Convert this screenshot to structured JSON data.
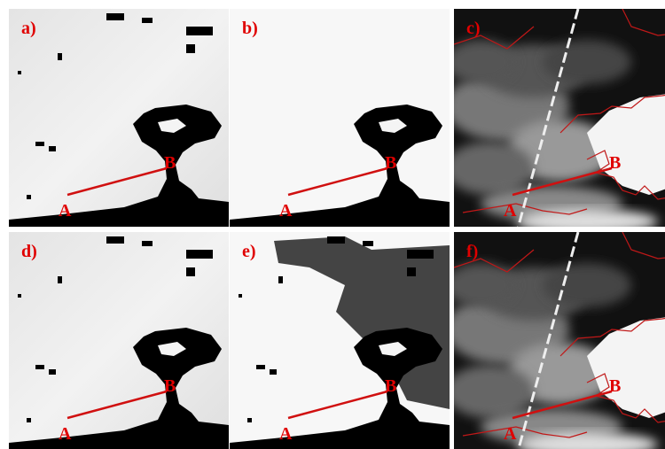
{
  "panels": [
    {
      "label": "a)",
      "point_a": "A",
      "point_b": "B"
    },
    {
      "label": "b)",
      "point_a": "A",
      "point_b": "B"
    },
    {
      "label": "c)",
      "point_a": "A",
      "point_b": "B"
    },
    {
      "label": "d)",
      "point_a": "A",
      "point_b": "B"
    },
    {
      "label": "e)",
      "point_a": "A",
      "point_b": "B"
    },
    {
      "label": "f)",
      "point_a": "A",
      "point_b": "B"
    }
  ]
}
